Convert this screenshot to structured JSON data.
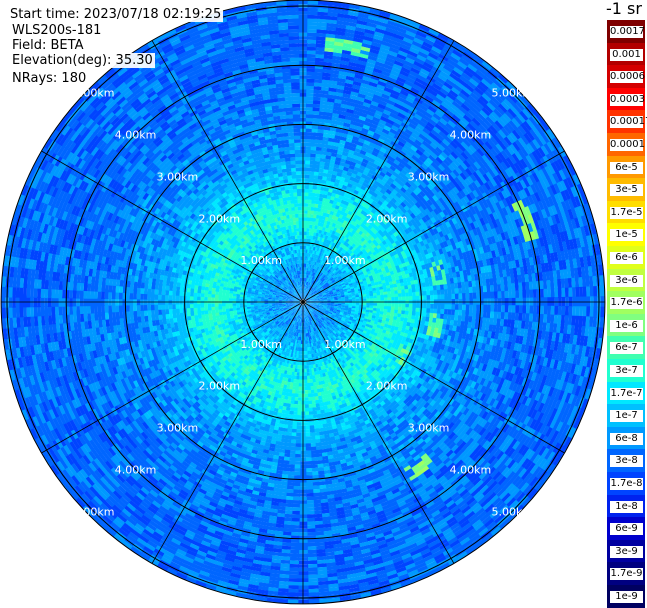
{
  "info": {
    "start_time": "Start time: 2023/07/18 02:19:25",
    "device": "WLS200s-181",
    "field": "Field: BETA",
    "elevation": "Elevation(deg): 35.30",
    "nrays": "NRays: 180"
  },
  "chart_data": {
    "type": "heatmap",
    "projection": "polar (PPI scan)",
    "field": "BETA",
    "nrays": 180,
    "elevation_deg": 35.3,
    "range_rings_km": [
      1.0,
      2.0,
      3.0,
      4.0,
      5.0
    ],
    "ring_labels": [
      "1.00km",
      "2.00km",
      "3.00km",
      "4.00km",
      "5.00km"
    ],
    "radial_spokes_deg": [
      0,
      30,
      60,
      90,
      120,
      150,
      180,
      210,
      240,
      270,
      300,
      330
    ],
    "max_range_km": 5.1,
    "colorbar": {
      "title": "-1 sr",
      "labels": [
        "0.0017",
        "0.001",
        "0.0006",
        "0.0003",
        "0.00017",
        "0.0001",
        "6e-5",
        "3e-5",
        "1.7e-5",
        "1e-5",
        "6e-6",
        "3e-6",
        "1.7e-6",
        "1e-6",
        "6e-7",
        "3e-7",
        "1.7e-7",
        "1e-7",
        "6e-8",
        "3e-8",
        "1.7e-8",
        "1e-8",
        "6e-9",
        "3e-9",
        "1.7e-9",
        "1e-9"
      ],
      "colors": [
        "#7f0000",
        "#b20000",
        "#d40000",
        "#ff0000",
        "#ff3300",
        "#ff6600",
        "#ff9900",
        "#ffbb00",
        "#ffdd00",
        "#ffff00",
        "#e0ff1a",
        "#c0ff40",
        "#a0ff60",
        "#80ff80",
        "#40ffb0",
        "#20ffd0",
        "#00e8ff",
        "#00c0ff",
        "#0099ff",
        "#0066ff",
        "#0044ff",
        "#0022ee",
        "#0000cc",
        "#0000a0",
        "#000080",
        "#000060"
      ]
    },
    "dominant_level_by_range_km": [
      {
        "range": 0.5,
        "level": "6e-8"
      },
      {
        "range": 1.5,
        "level": "3e-7"
      },
      {
        "range": 2.5,
        "level": "6e-8"
      },
      {
        "range": 4.0,
        "level": "3e-8"
      },
      {
        "range": 5.0,
        "level": "3e-8"
      }
    ],
    "features": [
      {
        "azimuth_deg": 10,
        "range_km": 4.4,
        "level": "1e-6"
      },
      {
        "azimuth_deg": 70,
        "range_km": 4.0,
        "level": "1.7e-6"
      },
      {
        "azimuth_deg": 78,
        "range_km": 2.35,
        "level": "1e-6"
      },
      {
        "azimuth_deg": 100,
        "range_km": 2.25,
        "level": "1e-6"
      },
      {
        "azimuth_deg": 118,
        "range_km": 1.9,
        "level": "1e-6"
      },
      {
        "azimuth_deg": 145,
        "range_km": 3.4,
        "level": "1.7e-6"
      }
    ]
  }
}
